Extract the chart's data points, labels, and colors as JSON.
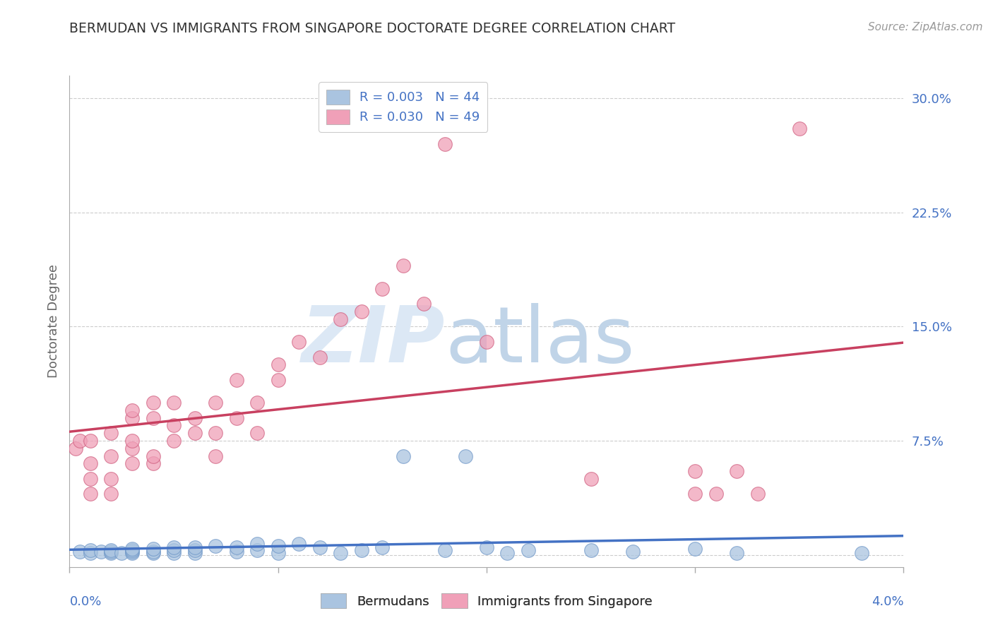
{
  "title": "BERMUDAN VS IMMIGRANTS FROM SINGAPORE DOCTORATE DEGREE CORRELATION CHART",
  "source": "Source: ZipAtlas.com",
  "ylabel": "Doctorate Degree",
  "xlim": [
    0.0,
    0.04
  ],
  "ylim": [
    -0.008,
    0.315
  ],
  "yticks": [
    0.0,
    0.075,
    0.15,
    0.225,
    0.3
  ],
  "ytick_labels": [
    "",
    "7.5%",
    "15.0%",
    "22.5%",
    "30.0%"
  ],
  "xticks": [
    0.0,
    0.01,
    0.02,
    0.03,
    0.04
  ],
  "legend_line1": "R = 0.003   N = 44",
  "legend_line2": "R = 0.030   N = 49",
  "legend_label_bermudans": "Bermudans",
  "legend_label_singapore": "Immigrants from Singapore",
  "bermudans_color": "#aac4e0",
  "singapore_color": "#f0a0b8",
  "bermudans_edge": "#7098c8",
  "singapore_edge": "#d06080",
  "trendline_bermudans_color": "#4472c4",
  "trendline_singapore_color": "#c84060",
  "background_color": "#ffffff",
  "grid_color": "#cccccc",
  "title_color": "#333333",
  "axis_label_color": "#4472c4",
  "watermark_zip_color": "#dce8f5",
  "watermark_atlas_color": "#c0d4e8",
  "bermudans_x": [
    0.0005,
    0.001,
    0.001,
    0.0015,
    0.002,
    0.002,
    0.002,
    0.0025,
    0.003,
    0.003,
    0.003,
    0.003,
    0.004,
    0.004,
    0.004,
    0.005,
    0.005,
    0.005,
    0.006,
    0.006,
    0.006,
    0.007,
    0.008,
    0.008,
    0.009,
    0.009,
    0.01,
    0.01,
    0.011,
    0.012,
    0.013,
    0.014,
    0.015,
    0.016,
    0.018,
    0.019,
    0.02,
    0.021,
    0.022,
    0.025,
    0.027,
    0.03,
    0.032,
    0.038
  ],
  "bermudans_y": [
    0.002,
    0.001,
    0.003,
    0.002,
    0.001,
    0.002,
    0.003,
    0.001,
    0.001,
    0.002,
    0.003,
    0.004,
    0.001,
    0.002,
    0.004,
    0.001,
    0.003,
    0.005,
    0.001,
    0.003,
    0.005,
    0.006,
    0.002,
    0.005,
    0.003,
    0.007,
    0.001,
    0.006,
    0.007,
    0.005,
    0.001,
    0.003,
    0.005,
    0.065,
    0.003,
    0.065,
    0.005,
    0.001,
    0.003,
    0.003,
    0.002,
    0.004,
    0.001,
    0.001
  ],
  "singapore_x": [
    0.0003,
    0.0005,
    0.001,
    0.001,
    0.001,
    0.001,
    0.002,
    0.002,
    0.002,
    0.002,
    0.003,
    0.003,
    0.003,
    0.003,
    0.003,
    0.004,
    0.004,
    0.004,
    0.004,
    0.005,
    0.005,
    0.005,
    0.006,
    0.006,
    0.007,
    0.007,
    0.007,
    0.008,
    0.008,
    0.009,
    0.009,
    0.01,
    0.01,
    0.011,
    0.012,
    0.013,
    0.014,
    0.015,
    0.016,
    0.017,
    0.018,
    0.02,
    0.025,
    0.03,
    0.03,
    0.031,
    0.032,
    0.033,
    0.035
  ],
  "singapore_y": [
    0.07,
    0.075,
    0.04,
    0.05,
    0.06,
    0.075,
    0.04,
    0.05,
    0.065,
    0.08,
    0.06,
    0.07,
    0.075,
    0.09,
    0.095,
    0.06,
    0.065,
    0.09,
    0.1,
    0.075,
    0.085,
    0.1,
    0.08,
    0.09,
    0.065,
    0.08,
    0.1,
    0.09,
    0.115,
    0.08,
    0.1,
    0.115,
    0.125,
    0.14,
    0.13,
    0.155,
    0.16,
    0.175,
    0.19,
    0.165,
    0.27,
    0.14,
    0.05,
    0.04,
    0.055,
    0.04,
    0.055,
    0.04,
    0.28
  ]
}
